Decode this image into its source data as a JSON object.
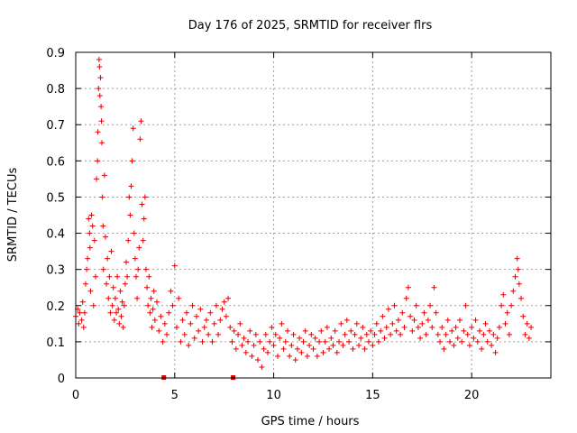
{
  "chart_data": {
    "type": "scatter",
    "title": "Day 176 of 2025, SRMTID for receiver flrs",
    "xlabel": "GPS time / hours",
    "ylabel": "SRMTID / TECUs",
    "xlim": [
      0,
      24
    ],
    "ylim": [
      0,
      0.9
    ],
    "x_ticks": [
      0,
      5,
      10,
      15,
      20
    ],
    "x_tick_labels": [
      "0",
      "5",
      "10",
      "15",
      "20"
    ],
    "y_ticks": [
      0,
      0.1,
      0.2,
      0.3,
      0.4,
      0.5,
      0.6,
      0.7,
      0.8,
      0.9
    ],
    "y_tick_labels": [
      "0",
      "0.1",
      "0.2",
      "0.3",
      "0.4",
      "0.5",
      "0.6",
      "0.7",
      "0.8",
      "0.9"
    ],
    "grid": true,
    "marker": "plus",
    "color": "#e00000",
    "series": [
      {
        "name": "SRMTID",
        "points": [
          [
            0.0,
            0.17
          ],
          [
            0.1,
            0.19
          ],
          [
            0.15,
            0.15
          ],
          [
            0.2,
            0.18
          ],
          [
            0.3,
            0.16
          ],
          [
            0.35,
            0.21
          ],
          [
            0.4,
            0.14
          ],
          [
            0.45,
            0.18
          ],
          [
            0.5,
            0.26
          ],
          [
            0.55,
            0.3
          ],
          [
            0.6,
            0.33
          ],
          [
            0.65,
            0.44
          ],
          [
            0.7,
            0.4
          ],
          [
            0.72,
            0.36
          ],
          [
            0.75,
            0.24
          ],
          [
            0.8,
            0.45
          ],
          [
            0.85,
            0.42
          ],
          [
            0.9,
            0.2
          ],
          [
            0.95,
            0.38
          ],
          [
            1.0,
            0.28
          ],
          [
            1.05,
            0.55
          ],
          [
            1.1,
            0.6
          ],
          [
            1.12,
            0.68
          ],
          [
            1.15,
            0.8
          ],
          [
            1.18,
            0.88
          ],
          [
            1.2,
            0.86
          ],
          [
            1.22,
            0.78
          ],
          [
            1.25,
            0.83
          ],
          [
            1.28,
            0.75
          ],
          [
            1.3,
            0.71
          ],
          [
            1.32,
            0.65
          ],
          [
            1.35,
            0.5
          ],
          [
            1.38,
            0.42
          ],
          [
            1.4,
            0.3
          ],
          [
            1.45,
            0.56
          ],
          [
            1.5,
            0.39
          ],
          [
            1.55,
            0.26
          ],
          [
            1.6,
            0.33
          ],
          [
            1.65,
            0.22
          ],
          [
            1.7,
            0.28
          ],
          [
            1.75,
            0.18
          ],
          [
            1.8,
            0.35
          ],
          [
            1.85,
            0.2
          ],
          [
            1.9,
            0.25
          ],
          [
            1.95,
            0.16
          ],
          [
            2.0,
            0.22
          ],
          [
            2.05,
            0.18
          ],
          [
            2.1,
            0.28
          ],
          [
            2.15,
            0.19
          ],
          [
            2.2,
            0.15
          ],
          [
            2.25,
            0.24
          ],
          [
            2.3,
            0.17
          ],
          [
            2.35,
            0.21
          ],
          [
            2.4,
            0.14
          ],
          [
            2.45,
            0.2
          ],
          [
            2.5,
            0.26
          ],
          [
            2.55,
            0.32
          ],
          [
            2.6,
            0.28
          ],
          [
            2.65,
            0.38
          ],
          [
            2.7,
            0.5
          ],
          [
            2.75,
            0.45
          ],
          [
            2.8,
            0.53
          ],
          [
            2.85,
            0.6
          ],
          [
            2.9,
            0.69
          ],
          [
            2.95,
            0.4
          ],
          [
            3.0,
            0.33
          ],
          [
            3.05,
            0.28
          ],
          [
            3.1,
            0.22
          ],
          [
            3.15,
            0.3
          ],
          [
            3.2,
            0.36
          ],
          [
            3.25,
            0.66
          ],
          [
            3.3,
            0.71
          ],
          [
            3.35,
            0.48
          ],
          [
            3.4,
            0.38
          ],
          [
            3.45,
            0.44
          ],
          [
            3.5,
            0.5
          ],
          [
            3.55,
            0.3
          ],
          [
            3.6,
            0.25
          ],
          [
            3.65,
            0.2
          ],
          [
            3.7,
            0.28
          ],
          [
            3.75,
            0.18
          ],
          [
            3.8,
            0.22
          ],
          [
            3.85,
            0.14
          ],
          [
            3.9,
            0.19
          ],
          [
            3.95,
            0.24
          ],
          [
            4.0,
            0.16
          ],
          [
            4.1,
            0.21
          ],
          [
            4.2,
            0.13
          ],
          [
            4.3,
            0.17
          ],
          [
            4.4,
            0.1
          ],
          [
            4.5,
            0.15
          ],
          [
            4.6,
            0.12
          ],
          [
            4.7,
            0.18
          ],
          [
            4.8,
            0.24
          ],
          [
            4.9,
            0.2
          ],
          [
            5.0,
            0.31
          ],
          [
            5.1,
            0.14
          ],
          [
            5.2,
            0.22
          ],
          [
            5.3,
            0.1
          ],
          [
            5.4,
            0.16
          ],
          [
            5.5,
            0.12
          ],
          [
            5.6,
            0.18
          ],
          [
            5.7,
            0.09
          ],
          [
            5.8,
            0.15
          ],
          [
            5.9,
            0.2
          ],
          [
            6.0,
            0.11
          ],
          [
            6.1,
            0.17
          ],
          [
            6.2,
            0.13
          ],
          [
            6.3,
            0.19
          ],
          [
            6.4,
            0.1
          ],
          [
            6.5,
            0.14
          ],
          [
            6.6,
            0.16
          ],
          [
            6.7,
            0.12
          ],
          [
            6.8,
            0.18
          ],
          [
            6.9,
            0.1
          ],
          [
            7.0,
            0.15
          ],
          [
            7.1,
            0.2
          ],
          [
            7.2,
            0.12
          ],
          [
            7.3,
            0.16
          ],
          [
            7.4,
            0.19
          ],
          [
            7.5,
            0.21
          ],
          [
            7.6,
            0.17
          ],
          [
            7.7,
            0.22
          ],
          [
            7.8,
            0.14
          ],
          [
            7.9,
            0.1
          ],
          [
            8.0,
            0.13
          ],
          [
            8.1,
            0.08
          ],
          [
            8.2,
            0.12
          ],
          [
            8.3,
            0.15
          ],
          [
            8.4,
            0.09
          ],
          [
            8.5,
            0.11
          ],
          [
            8.6,
            0.07
          ],
          [
            8.7,
            0.1
          ],
          [
            8.8,
            0.13
          ],
          [
            8.9,
            0.06
          ],
          [
            9.0,
            0.09
          ],
          [
            9.1,
            0.12
          ],
          [
            9.2,
            0.05
          ],
          [
            9.3,
            0.1
          ],
          [
            9.4,
            0.03
          ],
          [
            9.5,
            0.08
          ],
          [
            9.6,
            0.12
          ],
          [
            9.7,
            0.07
          ],
          [
            9.8,
            0.1
          ],
          [
            9.9,
            0.14
          ],
          [
            10.0,
            0.09
          ],
          [
            10.1,
            0.12
          ],
          [
            10.2,
            0.06
          ],
          [
            10.3,
            0.11
          ],
          [
            10.4,
            0.15
          ],
          [
            10.5,
            0.08
          ],
          [
            10.6,
            0.1
          ],
          [
            10.7,
            0.13
          ],
          [
            10.8,
            0.06
          ],
          [
            10.9,
            0.09
          ],
          [
            11.0,
            0.12
          ],
          [
            11.1,
            0.05
          ],
          [
            11.2,
            0.08
          ],
          [
            11.3,
            0.11
          ],
          [
            11.4,
            0.07
          ],
          [
            11.5,
            0.1
          ],
          [
            11.6,
            0.13
          ],
          [
            11.7,
            0.06
          ],
          [
            11.8,
            0.09
          ],
          [
            11.9,
            0.12
          ],
          [
            12.0,
            0.08
          ],
          [
            12.1,
            0.11
          ],
          [
            12.2,
            0.06
          ],
          [
            12.3,
            0.1
          ],
          [
            12.4,
            0.13
          ],
          [
            12.5,
            0.07
          ],
          [
            12.6,
            0.1
          ],
          [
            12.7,
            0.14
          ],
          [
            12.8,
            0.08
          ],
          [
            12.9,
            0.11
          ],
          [
            13.0,
            0.09
          ],
          [
            13.1,
            0.13
          ],
          [
            13.2,
            0.07
          ],
          [
            13.3,
            0.1
          ],
          [
            13.4,
            0.15
          ],
          [
            13.5,
            0.09
          ],
          [
            13.6,
            0.12
          ],
          [
            13.7,
            0.16
          ],
          [
            13.8,
            0.1
          ],
          [
            13.9,
            0.13
          ],
          [
            14.0,
            0.08
          ],
          [
            14.1,
            0.12
          ],
          [
            14.2,
            0.15
          ],
          [
            14.3,
            0.09
          ],
          [
            14.4,
            0.11
          ],
          [
            14.5,
            0.14
          ],
          [
            14.6,
            0.08
          ],
          [
            14.7,
            0.12
          ],
          [
            14.8,
            0.1
          ],
          [
            14.9,
            0.13
          ],
          [
            15.0,
            0.09
          ],
          [
            15.1,
            0.12
          ],
          [
            15.2,
            0.15
          ],
          [
            15.3,
            0.1
          ],
          [
            15.4,
            0.13
          ],
          [
            15.5,
            0.17
          ],
          [
            15.6,
            0.11
          ],
          [
            15.7,
            0.14
          ],
          [
            15.8,
            0.19
          ],
          [
            15.9,
            0.12
          ],
          [
            16.0,
            0.15
          ],
          [
            16.1,
            0.2
          ],
          [
            16.2,
            0.13
          ],
          [
            16.3,
            0.16
          ],
          [
            16.4,
            0.12
          ],
          [
            16.5,
            0.18
          ],
          [
            16.6,
            0.14
          ],
          [
            16.7,
            0.22
          ],
          [
            16.8,
            0.25
          ],
          [
            16.9,
            0.17
          ],
          [
            17.0,
            0.13
          ],
          [
            17.1,
            0.16
          ],
          [
            17.2,
            0.2
          ],
          [
            17.3,
            0.14
          ],
          [
            17.4,
            0.11
          ],
          [
            17.5,
            0.15
          ],
          [
            17.6,
            0.18
          ],
          [
            17.7,
            0.12
          ],
          [
            17.8,
            0.16
          ],
          [
            17.9,
            0.2
          ],
          [
            18.0,
            0.14
          ],
          [
            18.1,
            0.25
          ],
          [
            18.2,
            0.18
          ],
          [
            18.3,
            0.12
          ],
          [
            18.4,
            0.1
          ],
          [
            18.5,
            0.14
          ],
          [
            18.6,
            0.08
          ],
          [
            18.7,
            0.12
          ],
          [
            18.8,
            0.16
          ],
          [
            18.9,
            0.1
          ],
          [
            19.0,
            0.13
          ],
          [
            19.1,
            0.09
          ],
          [
            19.2,
            0.14
          ],
          [
            19.3,
            0.11
          ],
          [
            19.4,
            0.16
          ],
          [
            19.5,
            0.1
          ],
          [
            19.6,
            0.13
          ],
          [
            19.7,
            0.2
          ],
          [
            19.8,
            0.12
          ],
          [
            19.9,
            0.09
          ],
          [
            20.0,
            0.14
          ],
          [
            20.1,
            0.11
          ],
          [
            20.2,
            0.16
          ],
          [
            20.3,
            0.1
          ],
          [
            20.4,
            0.13
          ],
          [
            20.5,
            0.08
          ],
          [
            20.6,
            0.12
          ],
          [
            20.7,
            0.15
          ],
          [
            20.8,
            0.1
          ],
          [
            20.9,
            0.13
          ],
          [
            21.0,
            0.09
          ],
          [
            21.1,
            0.12
          ],
          [
            21.2,
            0.07
          ],
          [
            21.3,
            0.11
          ],
          [
            21.4,
            0.14
          ],
          [
            21.5,
            0.2
          ],
          [
            21.6,
            0.23
          ],
          [
            21.7,
            0.15
          ],
          [
            21.8,
            0.18
          ],
          [
            21.9,
            0.12
          ],
          [
            22.0,
            0.2
          ],
          [
            22.1,
            0.24
          ],
          [
            22.2,
            0.28
          ],
          [
            22.3,
            0.33
          ],
          [
            22.35,
            0.3
          ],
          [
            22.4,
            0.26
          ],
          [
            22.5,
            0.22
          ],
          [
            22.6,
            0.17
          ],
          [
            22.7,
            0.12
          ],
          [
            22.8,
            0.15
          ],
          [
            22.9,
            0.11
          ],
          [
            23.0,
            0.14
          ]
        ]
      }
    ],
    "gap_markers": [
      4.45,
      7.95
    ]
  }
}
